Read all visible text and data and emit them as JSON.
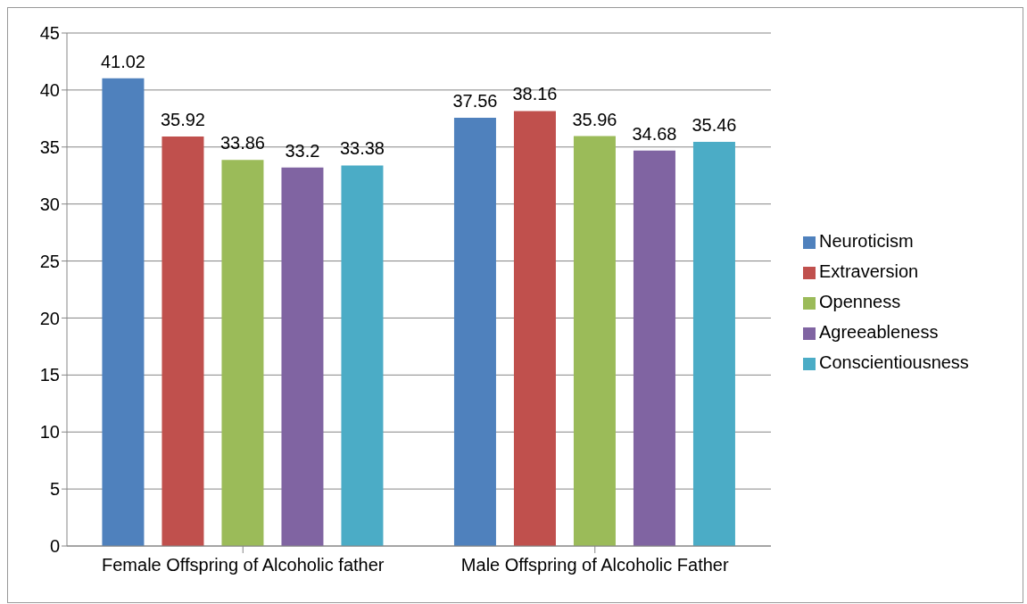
{
  "chart_data": {
    "type": "bar",
    "categories": [
      "Female Offspring of Alcoholic father",
      "Male Offspring of Alcoholic Father"
    ],
    "series": [
      {
        "name": "Neuroticism",
        "color": "#4f81bd",
        "values": [
          41.02,
          37.56
        ]
      },
      {
        "name": "Extraversion",
        "color": "#c0504d",
        "values": [
          35.92,
          38.16
        ]
      },
      {
        "name": "Openness",
        "color": "#9bbb59",
        "values": [
          33.86,
          35.96
        ]
      },
      {
        "name": "Agreeableness",
        "color": "#8064a2",
        "values": [
          33.2,
          34.68
        ]
      },
      {
        "name": "Conscientiousness",
        "color": "#4bacc6",
        "values": [
          33.38,
          35.46
        ]
      }
    ],
    "ylim": [
      0,
      45
    ],
    "yticks": [
      0,
      5,
      10,
      15,
      20,
      25,
      30,
      35,
      40,
      45
    ],
    "grid": "y",
    "legend": "right",
    "data_labels": true
  }
}
